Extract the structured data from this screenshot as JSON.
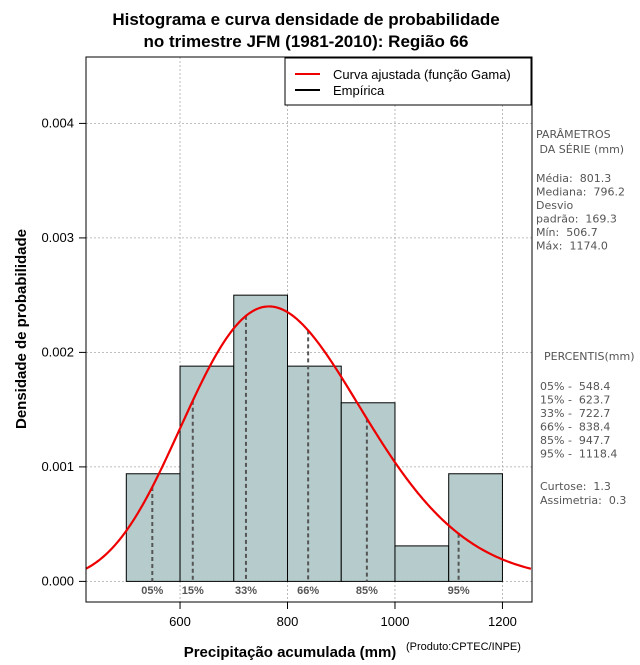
{
  "chart_data": {
    "type": "histogram",
    "title": [
      "Histograma e curva densidade de probabilidade",
      "no trimestre JFM (1981-2010): Região 66"
    ],
    "xlabel": "Precipitação acumulada (mm)",
    "ylabel": "Densidade de probabilidade",
    "credit": "(Produto:CPTEC/INPE)",
    "xlim": [
      425,
      1255
    ],
    "ylim": [
      -0.00018,
      0.00458
    ],
    "xticks": [
      600,
      800,
      1000,
      1200
    ],
    "xtick_labels": [
      "600",
      "800",
      "1000",
      "1200"
    ],
    "yticks": [
      0,
      0.001,
      0.002,
      0.003,
      0.004
    ],
    "ytick_labels": [
      "0.000",
      "0.001",
      "0.002",
      "0.003",
      "0.004"
    ],
    "bins": [
      {
        "x0": 500,
        "x1": 600,
        "density": 0.00094
      },
      {
        "x0": 600,
        "x1": 700,
        "density": 0.00188
      },
      {
        "x0": 700,
        "x1": 800,
        "density": 0.0025
      },
      {
        "x0": 800,
        "x1": 900,
        "density": 0.00188
      },
      {
        "x0": 900,
        "x1": 1000,
        "density": 0.00156
      },
      {
        "x0": 1000,
        "x1": 1100,
        "density": 0.00031
      },
      {
        "x0": 1100,
        "x1": 1200,
        "density": 0.00094
      }
    ],
    "gamma_fit": {
      "mean": 801.3,
      "sd": 169.3
    },
    "percentile_lines": [
      {
        "label": "05%",
        "value": 548.4
      },
      {
        "label": "15%",
        "value": 623.7
      },
      {
        "label": "33%",
        "value": 722.7
      },
      {
        "label": "66%",
        "value": 838.4
      },
      {
        "label": "85%",
        "value": 947.7
      },
      {
        "label": "95%",
        "value": 1118.4
      }
    ],
    "legend": {
      "position": "top-right",
      "entries": [
        {
          "label": "Curva ajustada (função Gama)",
          "color": "#ee0000"
        },
        {
          "label": "Empírica",
          "color": "#000000"
        }
      ]
    },
    "colors": {
      "bar_fill": "#b6cccc",
      "curve": "#ee0000",
      "percentile": "#555555",
      "grid": "#aaaaaa"
    },
    "side_panel": {
      "params_title": [
        "PARÂMETROS",
        " DA SÉRIE (mm)"
      ],
      "params": [
        "Média:  801.3",
        "Mediana:  796.2",
        "Desvio",
        "padrão:  169.3",
        "Mín:  506.7",
        "Máx:  1174.0"
      ],
      "percentis_title": "PERCENTIS(mm)",
      "percentis": [
        "05% -  548.4",
        "15% -  623.7",
        "33% -  722.7",
        "66% -  838.4",
        "85% -  947.7",
        "95% -  1118.4"
      ],
      "shape": [
        "Curtose:  1.3",
        "Assimetria:  0.3"
      ]
    }
  }
}
